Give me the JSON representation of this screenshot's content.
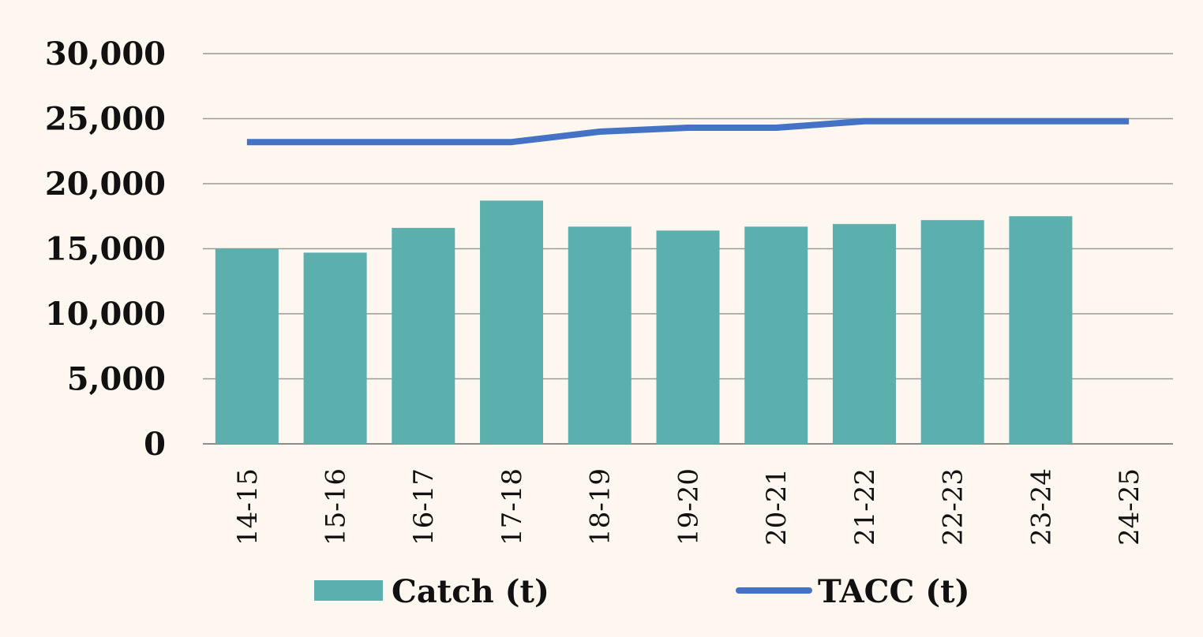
{
  "chart_data": {
    "type": "bar",
    "categories": [
      "14-15",
      "15-16",
      "16-17",
      "17-18",
      "18-19",
      "19-20",
      "20-21",
      "21-22",
      "22-23",
      "23-24",
      "24-25"
    ],
    "series": [
      {
        "name": "Catch (t)",
        "type": "bar",
        "color": "#5bafad",
        "values": [
          15000,
          14700,
          16600,
          18700,
          16700,
          16400,
          16700,
          16900,
          17200,
          17500,
          null
        ]
      },
      {
        "name": "TACC (t)",
        "type": "line",
        "color": "#4472c4",
        "values": [
          23200,
          23200,
          23200,
          23200,
          24000,
          24300,
          24300,
          24800,
          24800,
          24800,
          24800
        ]
      }
    ],
    "yticks": [
      "0",
      "5,000",
      "10,000",
      "15,000",
      "20,000",
      "25,000",
      "30,000"
    ],
    "ylim": [
      0,
      30000
    ],
    "grid": true,
    "legend_position": "bottom"
  }
}
